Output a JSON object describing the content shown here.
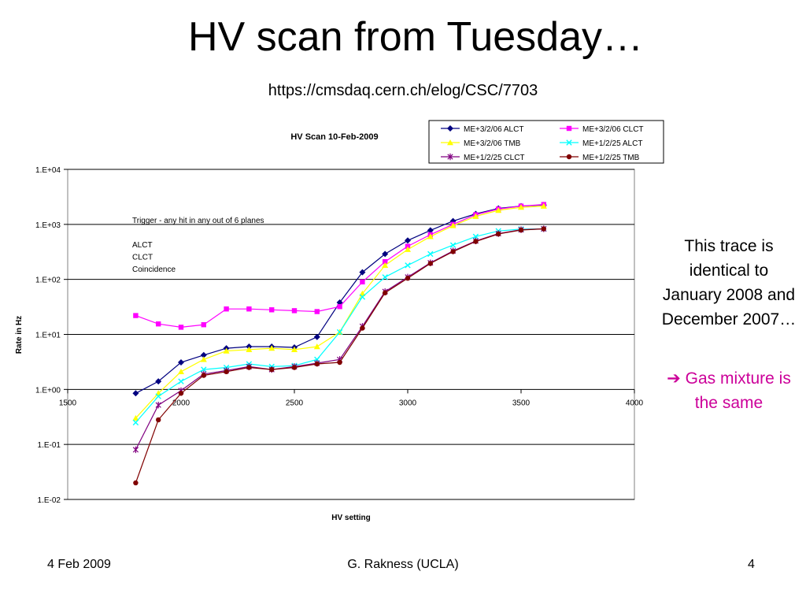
{
  "slide": {
    "title": "HV scan from Tuesday…",
    "url": "https://cmsdaq.cern.ch/elog/CSC/7703",
    "note": "This trace is identical to January 2008 and December 2007…",
    "arrow": "➔",
    "conclusion": "Gas mixture is the same",
    "footer_date": "4 Feb 2009",
    "footer_author": "G. Rakness (UCLA)",
    "footer_page": "4"
  },
  "chart_data": {
    "type": "line",
    "title": "HV Scan 10-Feb-2009",
    "xlabel": "HV setting",
    "ylabel": "Rate in Hz",
    "xlim": [
      1500,
      4000
    ],
    "xticks": [
      1500,
      2000,
      2500,
      3000,
      3500,
      4000
    ],
    "ylim": [
      0.01,
      10000
    ],
    "yscale": "log",
    "yticks": [
      0.01,
      0.1,
      1,
      10,
      100,
      1000,
      10000
    ],
    "ytick_labels": [
      "1.E-02",
      "1.E-01",
      "1.E+00",
      "1.E+01",
      "1.E+02",
      "1.E+03",
      "1.E+04"
    ],
    "grid": "horizontal",
    "legend": "top-right",
    "annotation": [
      "Trigger - any hit in any out of 6 planes",
      "",
      "ALCT",
      "CLCT",
      "Coincidence"
    ],
    "x": [
      1800,
      1900,
      2000,
      2100,
      2200,
      2300,
      2400,
      2500,
      2600,
      2700,
      2800,
      2900,
      3000,
      3100,
      3200,
      3300,
      3400,
      3500,
      3600
    ],
    "series": [
      {
        "name": "ME+3/2/06 ALCT",
        "color": "#000080",
        "marker": "diamond",
        "values": [
          0.85,
          1.4,
          3.1,
          4.2,
          5.6,
          6.0,
          6.0,
          5.8,
          9.0,
          38,
          135,
          290,
          510,
          780,
          1150,
          1550,
          1950,
          2150,
          2250
        ]
      },
      {
        "name": "ME+3/2/06 CLCT",
        "color": "#ff00ff",
        "marker": "square",
        "values": [
          22,
          15.5,
          13.5,
          15,
          29,
          29,
          28,
          27,
          26,
          32,
          90,
          210,
          400,
          650,
          1000,
          1500,
          1900,
          2150,
          2300
        ]
      },
      {
        "name": "ME+3/2/06 TMB",
        "color": "#ffff00",
        "marker": "triangle",
        "values": [
          0.3,
          0.85,
          2.1,
          3.5,
          5.0,
          5.3,
          5.6,
          5.3,
          6.0,
          11,
          55,
          180,
          350,
          600,
          950,
          1400,
          1800,
          2050,
          2150
        ]
      },
      {
        "name": "ME+1/2/25 ALCT",
        "color": "#00ffff",
        "marker": "x",
        "values": [
          0.25,
          0.75,
          1.4,
          2.3,
          2.5,
          2.9,
          2.6,
          2.7,
          3.5,
          11,
          48,
          110,
          180,
          290,
          420,
          600,
          760,
          820,
          830
        ]
      },
      {
        "name": "ME+1/2/25 CLCT",
        "color": "#800080",
        "marker": "star",
        "values": [
          0.08,
          0.52,
          0.95,
          1.9,
          2.2,
          2.6,
          2.3,
          2.6,
          3.0,
          3.5,
          14,
          60,
          110,
          200,
          330,
          500,
          680,
          800,
          830
        ]
      },
      {
        "name": "ME+1/2/25 TMB",
        "color": "#800000",
        "marker": "circle",
        "values": [
          0.02,
          0.28,
          0.85,
          1.8,
          2.1,
          2.5,
          2.3,
          2.5,
          2.9,
          3.1,
          13,
          57,
          105,
          195,
          320,
          490,
          670,
          790,
          830
        ]
      }
    ]
  }
}
